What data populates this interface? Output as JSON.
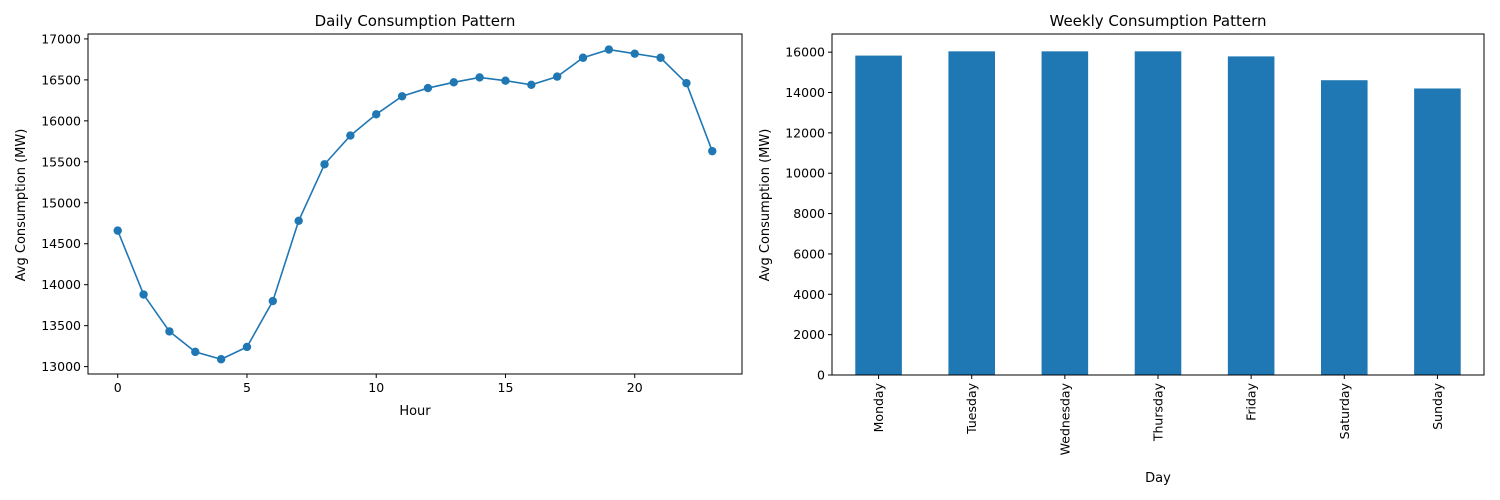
{
  "chart_data": [
    {
      "type": "line",
      "title": "Daily Consumption Pattern",
      "xlabel": "Hour",
      "ylabel": "Avg Consumption (MW)",
      "x": [
        0,
        1,
        2,
        3,
        4,
        5,
        6,
        7,
        8,
        9,
        10,
        11,
        12,
        13,
        14,
        15,
        16,
        17,
        18,
        19,
        20,
        21,
        22,
        23
      ],
      "values": [
        14660,
        13880,
        13430,
        13180,
        13090,
        13240,
        13800,
        14780,
        15470,
        15820,
        16080,
        16300,
        16400,
        16470,
        16530,
        16490,
        16440,
        16540,
        16770,
        16870,
        16820,
        16770,
        16460,
        15630
      ],
      "xlim": [
        -1.15,
        24.15
      ],
      "ylim": [
        12910,
        17060
      ],
      "xticks": [
        0,
        5,
        10,
        15,
        20
      ],
      "yticks": [
        13000,
        13500,
        14000,
        14500,
        15000,
        15500,
        16000,
        16500,
        17000
      ],
      "color": "#1f77b4",
      "marker": "circle"
    },
    {
      "type": "bar",
      "title": "Weekly Consumption Pattern",
      "xlabel": "Day",
      "ylabel": "Avg Consumption (MW)",
      "categories": [
        "Monday",
        "Tuesday",
        "Wednesday",
        "Thursday",
        "Friday",
        "Saturday",
        "Sunday"
      ],
      "values": [
        15830,
        16040,
        16040,
        16040,
        15790,
        14610,
        14200
      ],
      "ylim": [
        0,
        16900
      ],
      "yticks": [
        0,
        2000,
        4000,
        6000,
        8000,
        10000,
        12000,
        14000,
        16000
      ],
      "color": "#1f77b4"
    }
  ]
}
